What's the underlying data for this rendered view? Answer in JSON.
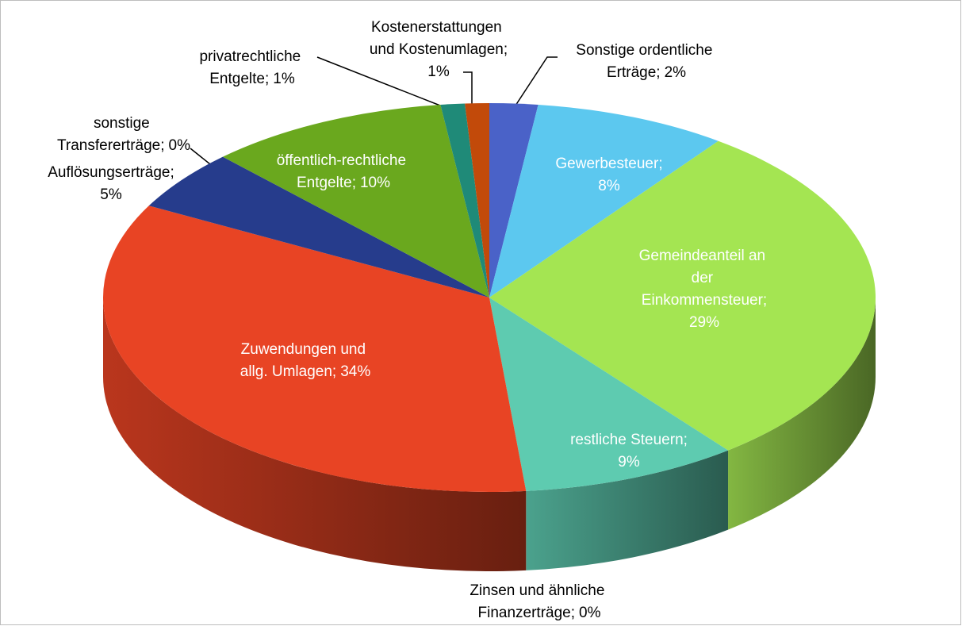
{
  "chart_data": {
    "type": "pie3d",
    "categories": [
      "Sonstige ordentliche Erträge",
      "Gewerbesteuer",
      "Gemeindeanteil an der Einkommensteuer",
      "restliche Steuern",
      "Zinsen und ähnliche Finanzerträge",
      "Zuwendungen und allg. Umlagen",
      "Auflösungserträge",
      "sonstige Transfererträge",
      "öffentlich-rechtliche Entgelte",
      "privatrechtliche Entgelte",
      "Kostenerstattungen und Kostenumlagen"
    ],
    "values": [
      2,
      8,
      29,
      9,
      0,
      34,
      5,
      0,
      10,
      1,
      1
    ],
    "value_labels": [
      "2%",
      "8%",
      "29%",
      "9%",
      "0%",
      "34%",
      "5%",
      "0%",
      "10%",
      "1%",
      "1%"
    ],
    "label_separator": ";",
    "colors": [
      "#4a62c8",
      "#5cc8ef",
      "#a4e552",
      "#5ecbb0",
      "#e8a040",
      "#e84424",
      "#263c8c",
      "#1a8ad4",
      "#6aa81e",
      "#1f8a78",
      "#c24a0a"
    ]
  }
}
